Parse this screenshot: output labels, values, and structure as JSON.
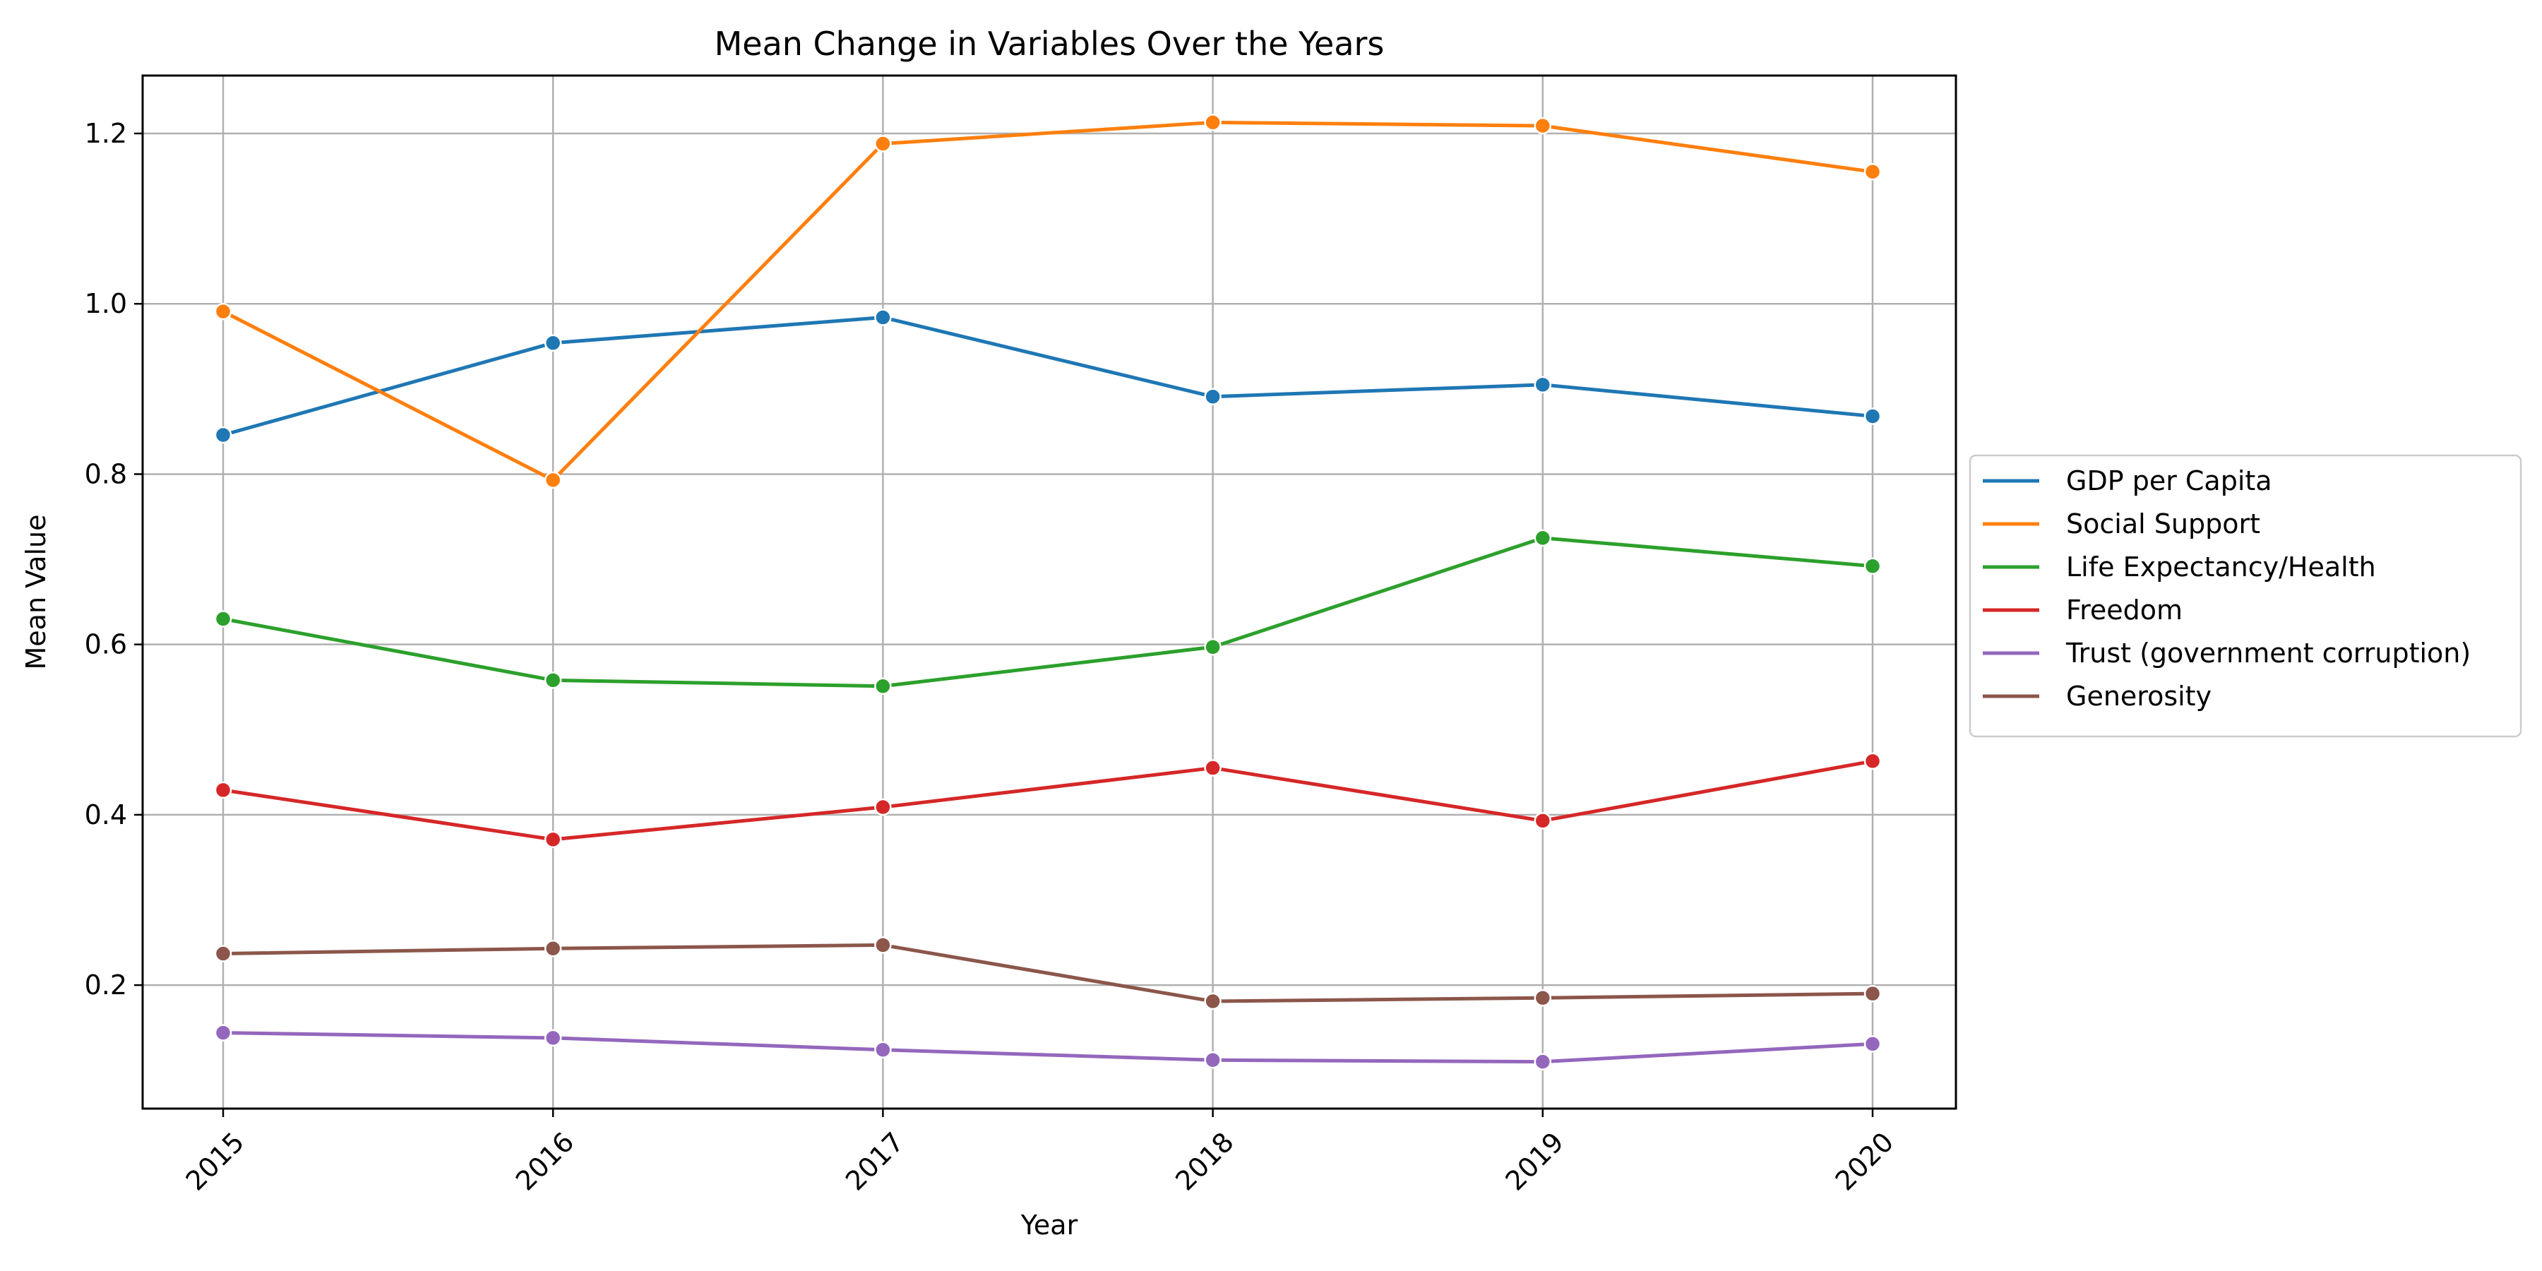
{
  "chart_data": {
    "type": "line",
    "title": "Mean Change in Variables Over the Years",
    "xlabel": "Year",
    "ylabel": "Mean Value",
    "x": [
      "2015",
      "2016",
      "2017",
      "2018",
      "2019",
      "2020"
    ],
    "ylim": [
      0.055,
      1.268
    ],
    "yticks": [
      "0.2",
      "0.4",
      "0.6",
      "0.8",
      "1.0",
      "1.2"
    ],
    "grid": true,
    "legend_position": "center-right, outside plot",
    "series": [
      {
        "name": "GDP per Capita",
        "color": "#1f77b4",
        "values": [
          0.846,
          0.954,
          0.984,
          0.891,
          0.905,
          0.868
        ]
      },
      {
        "name": "Social Support",
        "color": "#ff7f0e",
        "values": [
          0.991,
          0.793,
          1.188,
          1.213,
          1.209,
          1.155
        ]
      },
      {
        "name": "Life Expectancy/Health",
        "color": "#2ca02c",
        "values": [
          0.63,
          0.558,
          0.551,
          0.597,
          0.725,
          0.692
        ]
      },
      {
        "name": "Freedom",
        "color": "#d62728",
        "values": [
          0.429,
          0.371,
          0.409,
          0.455,
          0.393,
          0.463
        ]
      },
      {
        "name": "Trust (government corruption)",
        "color": "#9467bd",
        "values": [
          0.144,
          0.138,
          0.124,
          0.112,
          0.11,
          0.131
        ]
      },
      {
        "name": "Generosity",
        "color": "#8c564b",
        "values": [
          0.237,
          0.243,
          0.247,
          0.181,
          0.185,
          0.19
        ]
      }
    ]
  }
}
